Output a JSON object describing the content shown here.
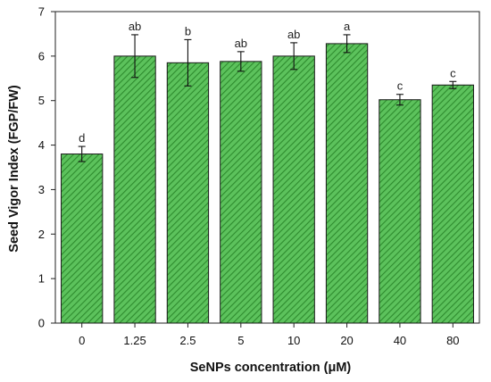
{
  "chart_data": {
    "type": "bar",
    "xlabel": "SeNPs concentration (μM)",
    "ylabel": "Seed Vigor Index (FGP/FW)",
    "categories": [
      "0",
      "1.25",
      "2.5",
      "5",
      "10",
      "20",
      "40",
      "80"
    ],
    "values": [
      3.8,
      6.0,
      5.85,
      5.88,
      6.0,
      6.28,
      5.02,
      5.35
    ],
    "errors": [
      0.17,
      0.48,
      0.52,
      0.22,
      0.3,
      0.2,
      0.12,
      0.08
    ],
    "significance_letters": [
      "d",
      "ab",
      "b",
      "ab",
      "ab",
      "a",
      "c",
      "c"
    ],
    "ylim": [
      0,
      7
    ],
    "yticks": [
      "0",
      "1",
      "2",
      "3",
      "4",
      "5",
      "6",
      "7"
    ],
    "grid": false,
    "legend": "none",
    "bar_color": "#5cc25c",
    "hatch_color": "#2e8b2e",
    "edge_color": "#1a1a1a"
  }
}
